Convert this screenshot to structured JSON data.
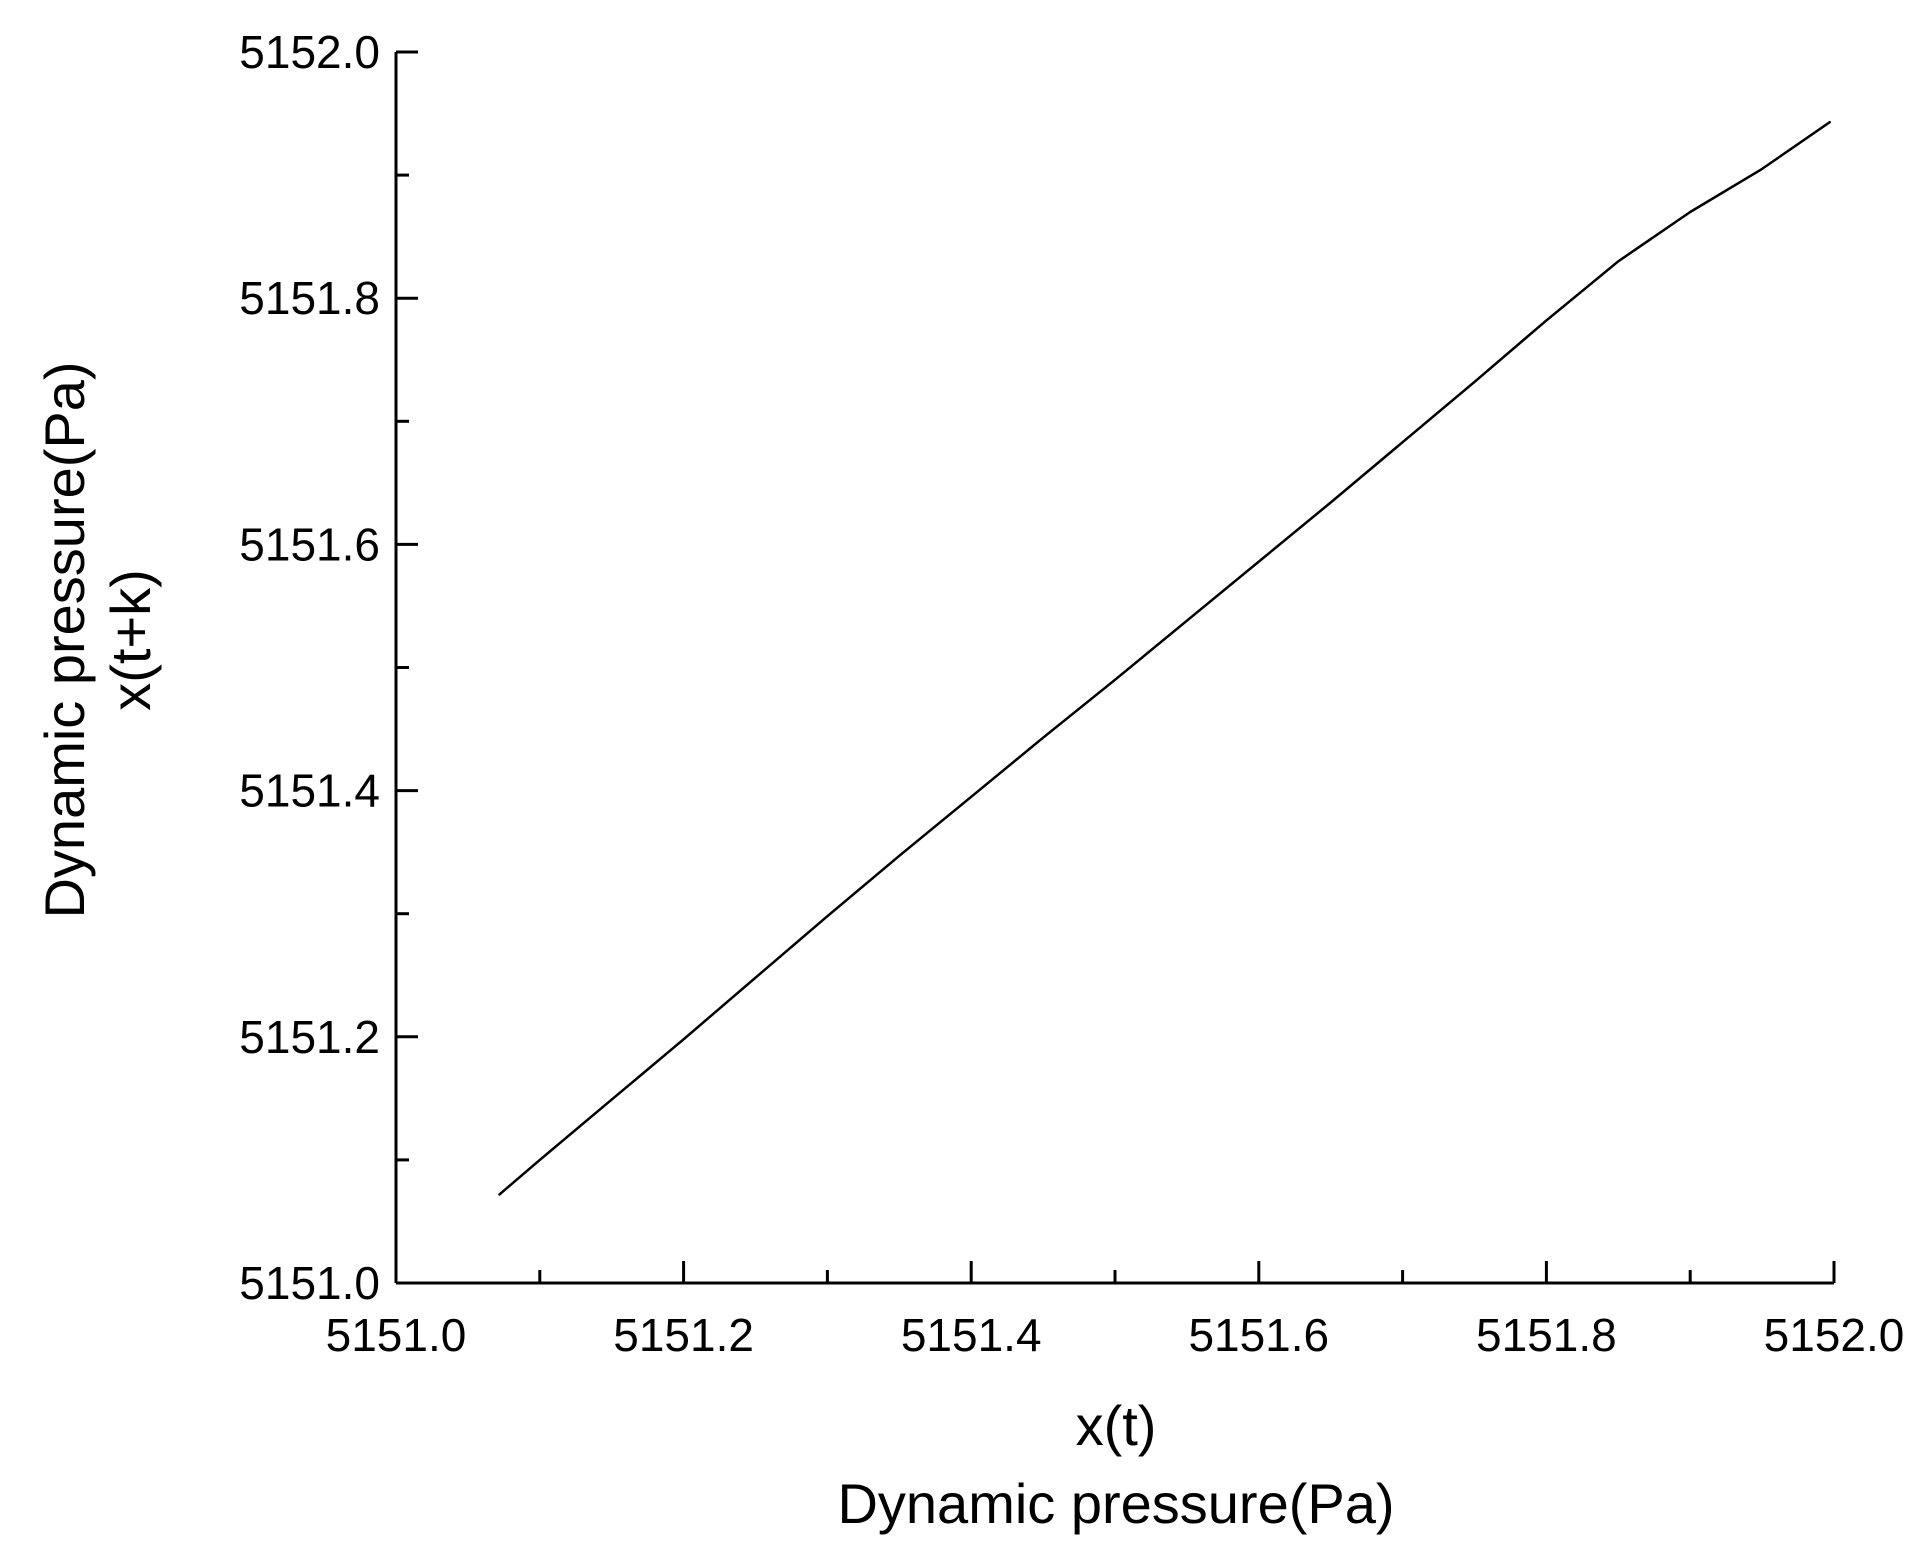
{
  "chart_data": {
    "type": "line",
    "xlabel_lines": [
      "x(t)",
      "Dynamic pressure(Pa)"
    ],
    "ylabel_lines": [
      "Dynamic pressure(Pa)",
      "x(t+k)"
    ],
    "xlim": [
      5151.0,
      5152.0
    ],
    "ylim": [
      5151.0,
      5152.0
    ],
    "x_major_ticks": [
      5151.0,
      5151.2,
      5151.4,
      5151.6,
      5151.8,
      5152.0
    ],
    "x_tick_labels": [
      "5151.0",
      "5151.2",
      "5151.4",
      "5151.6",
      "5151.8",
      "5152.0"
    ],
    "x_minor_ticks": [
      5151.1,
      5151.3,
      5151.5,
      5151.7,
      5151.9
    ],
    "y_major_ticks": [
      5151.0,
      5151.2,
      5151.4,
      5151.6,
      5151.8,
      5152.0
    ],
    "y_tick_labels": [
      "5151.0",
      "5151.2",
      "5151.4",
      "5151.6",
      "5151.8",
      "5152.0"
    ],
    "y_minor_ticks": [
      5151.1,
      5151.3,
      5151.5,
      5151.7,
      5151.9
    ],
    "grid": false,
    "line_color": "#000000",
    "series": [
      {
        "x": [
          5151.072,
          5151.1,
          5151.15,
          5151.2,
          5151.25,
          5151.3,
          5151.35,
          5151.4,
          5151.45,
          5151.5,
          5151.55,
          5151.6,
          5151.65,
          5151.7,
          5151.75,
          5151.8,
          5151.85,
          5151.9,
          5151.95,
          5151.997
        ],
        "y": [
          5151.072,
          5151.1,
          5151.149,
          5151.198,
          5151.248,
          5151.298,
          5151.347,
          5151.395,
          5151.443,
          5151.49,
          5151.538,
          5151.586,
          5151.634,
          5151.683,
          5151.732,
          5151.782,
          5151.83,
          5151.87,
          5151.905,
          5151.943
        ]
      }
    ]
  }
}
